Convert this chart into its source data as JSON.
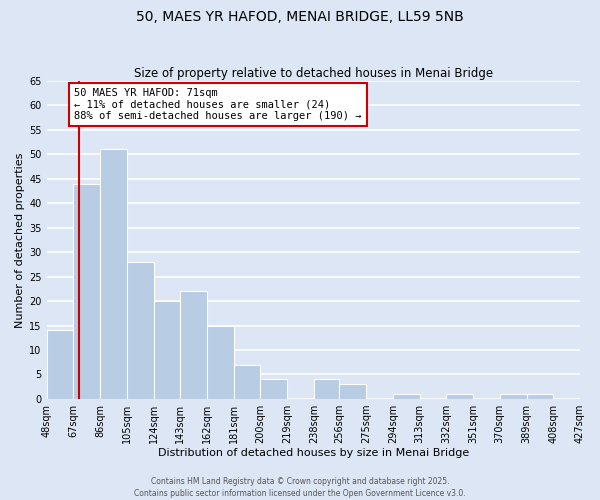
{
  "title": "50, MAES YR HAFOD, MENAI BRIDGE, LL59 5NB",
  "subtitle": "Size of property relative to detached houses in Menai Bridge",
  "xlabel": "Distribution of detached houses by size in Menai Bridge",
  "ylabel": "Number of detached properties",
  "bar_values": [
    14,
    44,
    51,
    28,
    20,
    22,
    15,
    7,
    4,
    0,
    4,
    3,
    0,
    1,
    0,
    1,
    0,
    1,
    1,
    0
  ],
  "bin_edges": [
    48,
    67,
    86,
    105,
    124,
    143,
    162,
    181,
    200,
    219,
    238,
    256,
    275,
    294,
    313,
    332,
    351,
    370,
    389,
    408,
    427
  ],
  "bin_labels": [
    "48sqm",
    "67sqm",
    "86sqm",
    "105sqm",
    "124sqm",
    "143sqm",
    "162sqm",
    "181sqm",
    "200sqm",
    "219sqm",
    "238sqm",
    "256sqm",
    "275sqm",
    "294sqm",
    "313sqm",
    "332sqm",
    "351sqm",
    "370sqm",
    "389sqm",
    "408sqm",
    "427sqm"
  ],
  "bar_color": "#b8cce4",
  "bar_edge_color": "#ffffff",
  "property_line_x": 71,
  "property_line_color": "#cc0000",
  "annotation_text": "50 MAES YR HAFOD: 71sqm\n← 11% of detached houses are smaller (24)\n88% of semi-detached houses are larger (190) →",
  "annotation_box_facecolor": "#ffffff",
  "annotation_box_edgecolor": "#cc0000",
  "ylim": [
    0,
    65
  ],
  "yticks": [
    0,
    5,
    10,
    15,
    20,
    25,
    30,
    35,
    40,
    45,
    50,
    55,
    60,
    65
  ],
  "background_color": "#dce6f5",
  "grid_color": "#ffffff",
  "footer_line1": "Contains HM Land Registry data © Crown copyright and database right 2025.",
  "footer_line2": "Contains public sector information licensed under the Open Government Licence v3.0.",
  "title_fontsize": 10,
  "subtitle_fontsize": 8.5,
  "axis_label_fontsize": 8,
  "tick_fontsize": 7,
  "annotation_fontsize": 7.5,
  "footer_fontsize": 5.5
}
